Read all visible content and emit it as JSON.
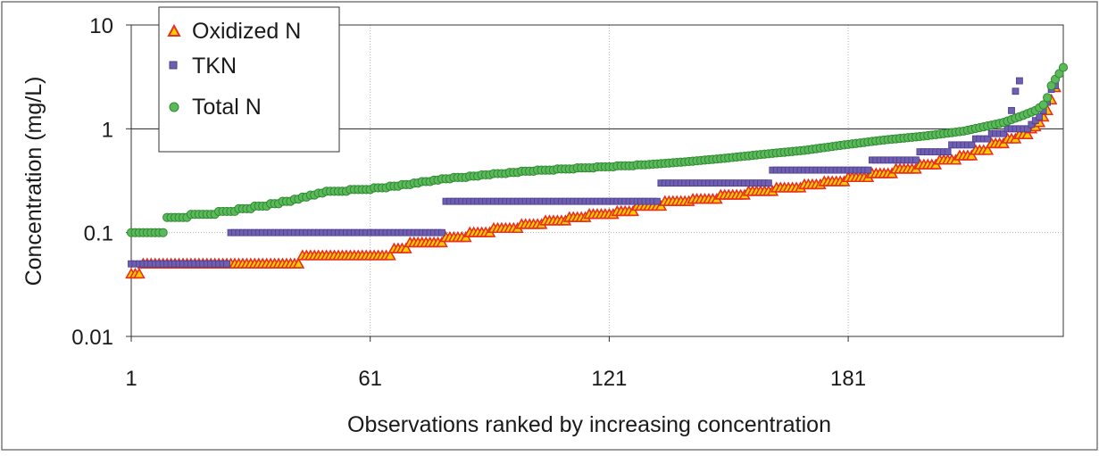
{
  "chart_data": {
    "type": "scatter",
    "title": "",
    "xlabel": "Observations ranked by increasing concentration",
    "ylabel": "Concentration (mg/L)",
    "xlim": [
      1,
      235
    ],
    "ylim": [
      0.01,
      10
    ],
    "yscale": "log",
    "x_ticks": [
      "1",
      "61",
      "121",
      "181"
    ],
    "y_ticks": [
      "0.01",
      "0.1",
      "1",
      "10"
    ],
    "grid": "vertical at x ticks, horizontal at y ticks (y=1 solid)",
    "legend_position": "top-left",
    "colors": {
      "oxidized_fill": "#ffcc00",
      "oxidized_edge": "#e8301e",
      "tkn": "#6f5fb0",
      "total_fill": "#5bb85b",
      "total_edge": "#2f8a2f"
    },
    "series": [
      {
        "name": "Oxidized N",
        "marker": "triangle",
        "runs": [
          [
            1,
            3,
            0.04
          ],
          [
            4,
            25,
            0.05
          ],
          [
            26,
            43,
            0.05
          ],
          [
            44,
            66,
            0.06
          ],
          [
            67,
            70,
            0.07
          ],
          [
            71,
            79,
            0.08
          ],
          [
            80,
            85,
            0.09
          ],
          [
            86,
            91,
            0.1
          ],
          [
            92,
            98,
            0.11
          ],
          [
            99,
            104,
            0.12
          ],
          [
            105,
            110,
            0.13
          ],
          [
            111,
            115,
            0.14
          ],
          [
            116,
            122,
            0.15
          ],
          [
            123,
            127,
            0.16
          ],
          [
            128,
            134,
            0.18
          ],
          [
            135,
            141,
            0.2
          ],
          [
            142,
            148,
            0.21
          ],
          [
            149,
            155,
            0.23
          ],
          [
            156,
            162,
            0.25
          ],
          [
            163,
            169,
            0.27
          ],
          [
            170,
            174,
            0.29
          ],
          [
            175,
            180,
            0.31
          ],
          [
            181,
            186,
            0.34
          ],
          [
            187,
            192,
            0.37
          ],
          [
            193,
            198,
            0.41
          ],
          [
            199,
            203,
            0.45
          ],
          [
            204,
            208,
            0.5
          ],
          [
            209,
            212,
            0.55
          ],
          [
            213,
            216,
            0.62
          ],
          [
            217,
            220,
            0.72
          ],
          [
            221,
            223,
            0.8
          ],
          [
            224,
            226,
            0.88
          ]
        ],
        "tail": [
          [
            227,
            1.0
          ],
          [
            228,
            1.05
          ],
          [
            229,
            1.15
          ],
          [
            230,
            1.3
          ],
          [
            231,
            1.5
          ],
          [
            232,
            1.9
          ],
          [
            233,
            2.5
          ]
        ]
      },
      {
        "name": "TKN",
        "marker": "square",
        "runs": [
          [
            1,
            25,
            0.05
          ],
          [
            26,
            79,
            0.1
          ],
          [
            80,
            133,
            0.2
          ],
          [
            134,
            161,
            0.3
          ],
          [
            162,
            186,
            0.4
          ],
          [
            187,
            198,
            0.5
          ],
          [
            199,
            206,
            0.6
          ],
          [
            207,
            212,
            0.7
          ],
          [
            213,
            216,
            0.8
          ],
          [
            217,
            220,
            0.9
          ],
          [
            221,
            226,
            1.0
          ]
        ],
        "tail": [
          [
            227,
            1.1
          ],
          [
            228,
            1.2
          ],
          [
            229,
            1.3
          ],
          [
            230,
            1.5
          ],
          [
            231,
            1.8
          ],
          [
            232,
            2.4
          ],
          [
            233,
            2.6
          ],
          [
            222,
            1.5
          ],
          [
            223,
            2.3
          ],
          [
            224,
            2.9
          ]
        ]
      },
      {
        "name": "Total N",
        "marker": "circle",
        "start": [
          [
            1,
            9,
            0.1
          ]
        ],
        "points": [
          [
            10,
            0.14
          ],
          [
            20,
            0.15
          ],
          [
            30,
            0.17
          ],
          [
            40,
            0.2
          ],
          [
            50,
            0.25
          ],
          [
            60,
            0.26
          ],
          [
            70,
            0.29
          ],
          [
            80,
            0.33
          ],
          [
            90,
            0.36
          ],
          [
            100,
            0.39
          ],
          [
            110,
            0.41
          ],
          [
            120,
            0.43
          ],
          [
            130,
            0.45
          ],
          [
            140,
            0.48
          ],
          [
            150,
            0.52
          ],
          [
            160,
            0.57
          ],
          [
            170,
            0.62
          ],
          [
            180,
            0.7
          ],
          [
            190,
            0.78
          ],
          [
            200,
            0.85
          ],
          [
            210,
            0.95
          ],
          [
            220,
            1.15
          ],
          [
            225,
            1.35
          ],
          [
            228,
            1.5
          ],
          [
            230,
            1.7
          ],
          [
            231,
            2.0
          ],
          [
            232,
            2.6
          ],
          [
            233,
            3.0
          ],
          [
            234,
            3.4
          ],
          [
            235,
            3.9
          ]
        ]
      }
    ]
  }
}
